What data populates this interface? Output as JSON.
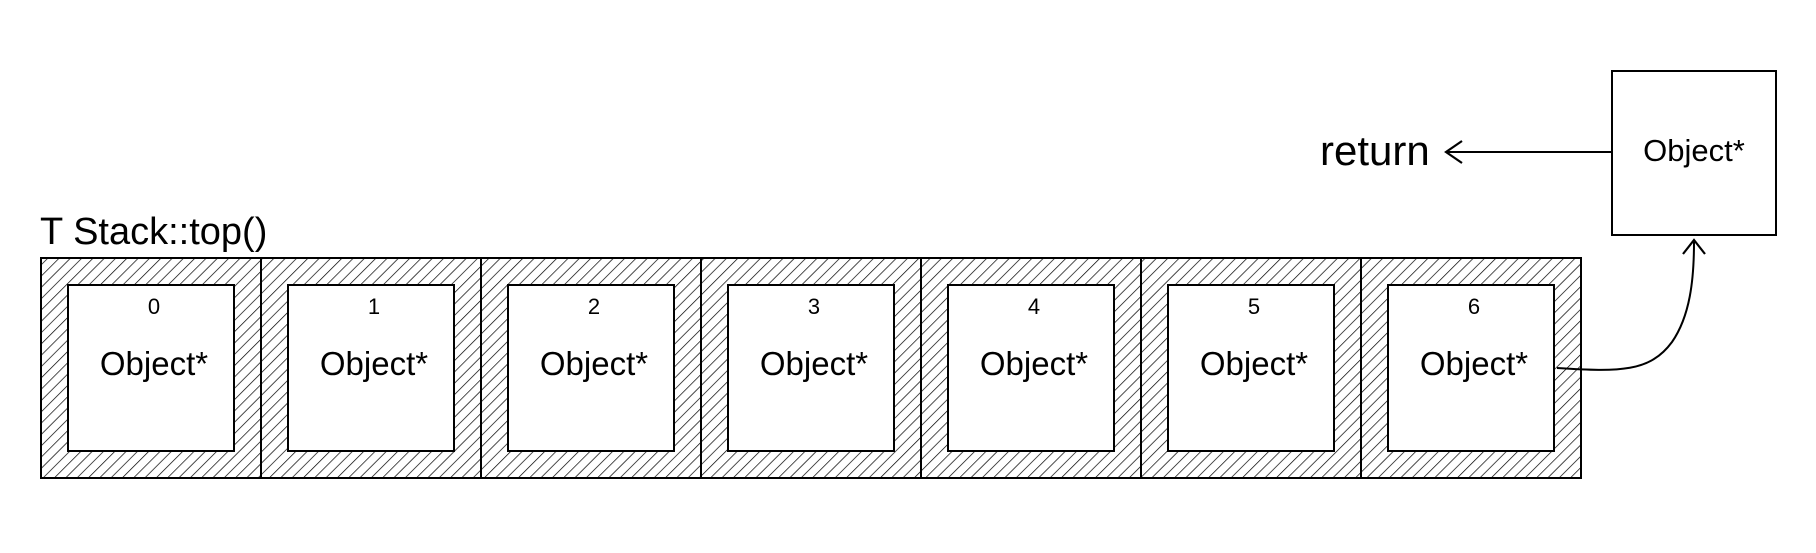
{
  "diagram": {
    "title": "T Stack::top()",
    "cells": [
      {
        "index": "0",
        "label": "Object*"
      },
      {
        "index": "1",
        "label": "Object*"
      },
      {
        "index": "2",
        "label": "Object*"
      },
      {
        "index": "3",
        "label": "Object*"
      },
      {
        "index": "4",
        "label": "Object*"
      },
      {
        "index": "5",
        "label": "Object*"
      },
      {
        "index": "6",
        "label": "Object*"
      }
    ],
    "top_element": {
      "label": "Object*"
    },
    "return_label": "return"
  },
  "colors": {
    "stroke": "#000000",
    "background": "#ffffff"
  }
}
